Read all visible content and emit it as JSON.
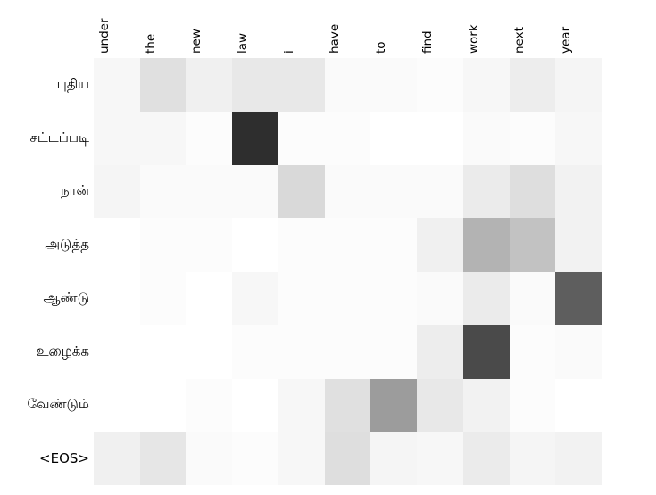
{
  "figure": {
    "background_color": "#ffffff",
    "label_color": "#000000"
  },
  "chart_data": {
    "type": "heatmap",
    "description": "attention alignment matrix between English source tokens (columns) and Tamil target tokens (rows); darker cell = higher weight",
    "x_labels": [
      "under",
      "the",
      "new",
      "law",
      "i",
      "have",
      "to",
      "find",
      "work",
      "next",
      "year"
    ],
    "y_labels": [
      "புதிய",
      "சட்டப்படி",
      "நான்",
      "அடுத்த",
      "ஆண்டு",
      "உழைக்க",
      "வேண்டும்",
      "<EOS>"
    ],
    "values": [
      [
        0.03,
        0.12,
        0.06,
        0.09,
        0.09,
        0.02,
        0.02,
        0.01,
        0.03,
        0.07,
        0.04
      ],
      [
        0.03,
        0.03,
        0.01,
        0.82,
        0.01,
        0.01,
        0.0,
        0.0,
        0.02,
        0.01,
        0.03
      ],
      [
        0.04,
        0.02,
        0.02,
        0.02,
        0.15,
        0.02,
        0.02,
        0.02,
        0.08,
        0.13,
        0.05
      ],
      [
        0.0,
        0.01,
        0.01,
        0.0,
        0.01,
        0.01,
        0.01,
        0.06,
        0.3,
        0.24,
        0.05
      ],
      [
        0.0,
        0.01,
        0.0,
        0.03,
        0.01,
        0.01,
        0.01,
        0.02,
        0.08,
        0.02,
        0.63
      ],
      [
        0.0,
        0.0,
        0.0,
        0.01,
        0.01,
        0.01,
        0.01,
        0.07,
        0.71,
        0.01,
        0.02
      ],
      [
        0.0,
        0.0,
        0.01,
        0.0,
        0.03,
        0.12,
        0.39,
        0.09,
        0.05,
        0.01,
        0.0
      ],
      [
        0.06,
        0.1,
        0.02,
        0.01,
        0.03,
        0.13,
        0.04,
        0.03,
        0.08,
        0.04,
        0.05
      ]
    ],
    "value_range": [
      0,
      1
    ],
    "colormap": {
      "name": "gray_r",
      "low_color": "#ffffff",
      "high_color": "#000000"
    },
    "x_tick_rotation_deg": 90,
    "legend": "none",
    "gridlines": false,
    "title": ""
  }
}
